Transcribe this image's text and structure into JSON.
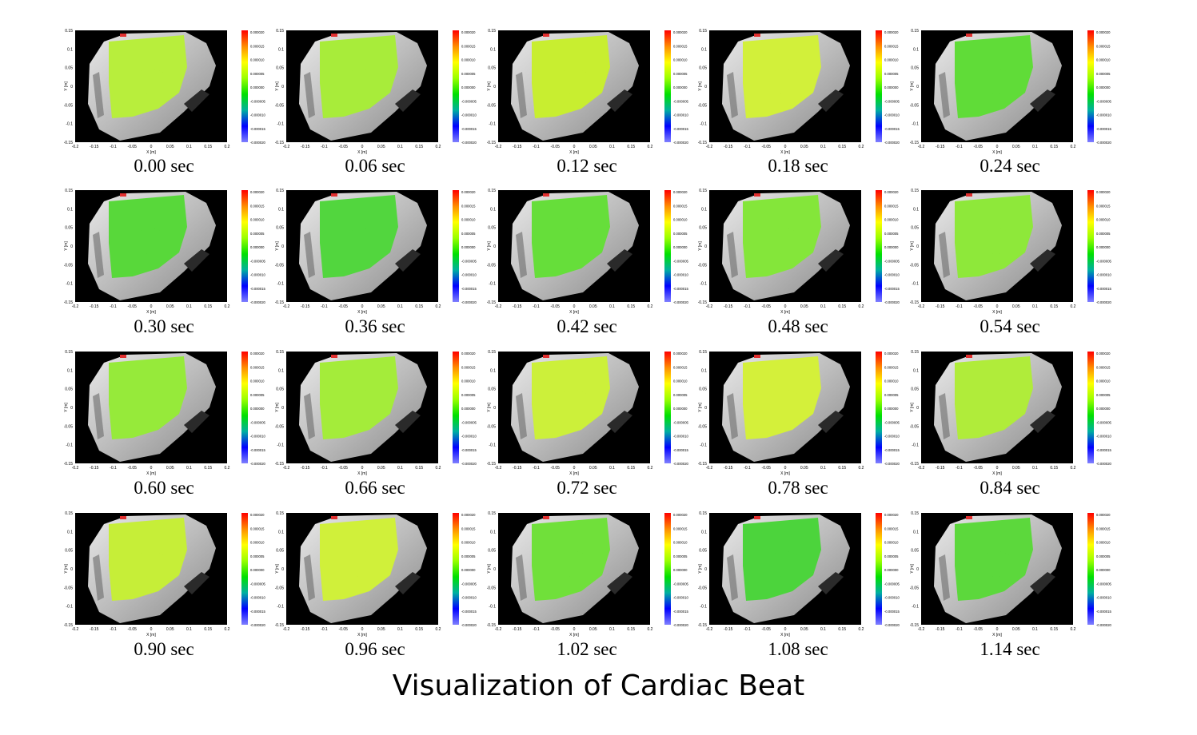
{
  "title": "Visualization of Cardiac Beat",
  "axes": {
    "xlabel": "X [m]",
    "ylabel": "Y [m]",
    "xticks": [
      "-0.2",
      "-0.15",
      "-0.1",
      "-0.05",
      "0",
      "0.05",
      "0.1",
      "0.15",
      "0.2"
    ],
    "yticks": [
      "0.15",
      "0.1",
      "0.05",
      "0",
      "-0.05",
      "-0.1",
      "-0.15"
    ]
  },
  "colorbar": {
    "ticks": [
      "0.000020",
      "0.000015",
      "0.000010",
      "0.000005",
      "0.000000",
      "-0.000005",
      "-0.000010",
      "-0.000015",
      "-0.000020"
    ],
    "colors": [
      "#ff0000",
      "#ff8c00",
      "#ffff00",
      "#9aff00",
      "#00e000",
      "#00b0a0",
      "#0000ff",
      "#8080ff"
    ]
  },
  "frames": [
    {
      "time": "0.00 sec",
      "tint": "#b8ee3c"
    },
    {
      "time": "0.06 sec",
      "tint": "#a8ec3a"
    },
    {
      "time": "0.12 sec",
      "tint": "#c8ee30"
    },
    {
      "time": "0.18 sec",
      "tint": "#d2f03a"
    },
    {
      "time": "0.24 sec",
      "tint": "#60dc38"
    },
    {
      "time": "0.30 sec",
      "tint": "#58d83a"
    },
    {
      "time": "0.36 sec",
      "tint": "#52d63e"
    },
    {
      "time": "0.42 sec",
      "tint": "#66de3a"
    },
    {
      "time": "0.48 sec",
      "tint": "#84e63a"
    },
    {
      "time": "0.54 sec",
      "tint": "#8ee83a"
    },
    {
      "time": "0.60 sec",
      "tint": "#96ea3a"
    },
    {
      "time": "0.66 sec",
      "tint": "#a4ec3a"
    },
    {
      "time": "0.72 sec",
      "tint": "#ccf03a"
    },
    {
      "time": "0.78 sec",
      "tint": "#d4f03a"
    },
    {
      "time": "0.84 sec",
      "tint": "#b0ec3a"
    },
    {
      "time": "0.90 sec",
      "tint": "#c6ee38"
    },
    {
      "time": "0.96 sec",
      "tint": "#d0f03a"
    },
    {
      "time": "1.02 sec",
      "tint": "#70e03a"
    },
    {
      "time": "1.08 sec",
      "tint": "#4cd43c"
    },
    {
      "time": "1.14 sec",
      "tint": "#5cd83c"
    }
  ]
}
